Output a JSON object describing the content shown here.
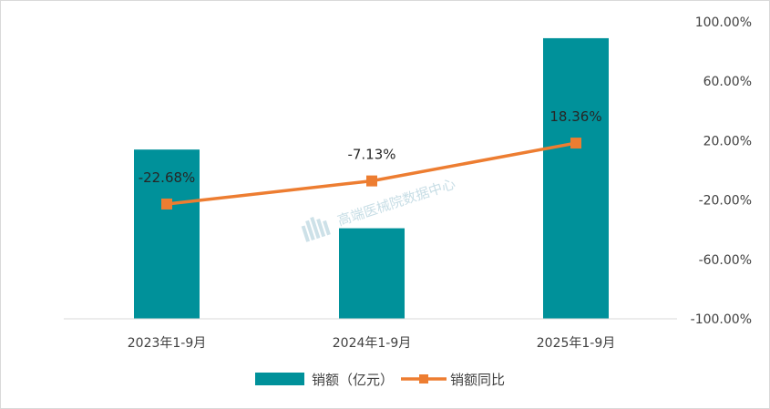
{
  "chart_data": {
    "type": "bar+line",
    "categories": [
      "2023年1-9月",
      "2024年1-9月",
      "2025年1-9月"
    ],
    "series": [
      {
        "name": "销额（亿元）",
        "kind": "bar",
        "color": "#00919a",
        "values": [
          114,
          61,
          189
        ]
      },
      {
        "name": "销额同比",
        "kind": "line",
        "color": "#ed7d31",
        "values": [
          -22.68,
          -7.13,
          18.36
        ],
        "labels": [
          "-22.68%",
          "-7.13%",
          "18.36%"
        ]
      }
    ],
    "y2_ticks": [
      "100.00%",
      "60.00%",
      "20.00%",
      "-20.00%",
      "-60.00%",
      "-100.00%"
    ],
    "y2lim": [
      -100,
      100
    ],
    "legend": [
      "销额（亿元）",
      "销额同比"
    ],
    "legend_position": "bottom",
    "grid": false
  },
  "watermark": "高端医械院数据中心"
}
